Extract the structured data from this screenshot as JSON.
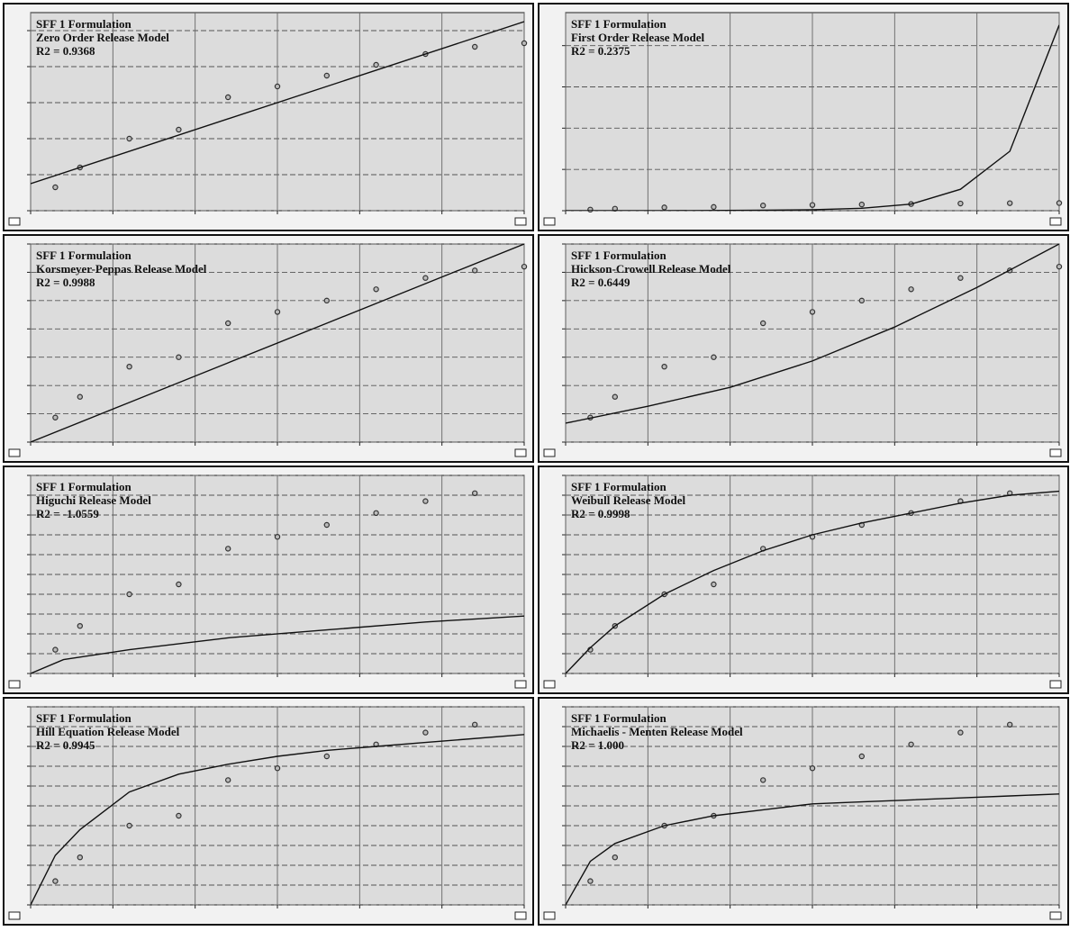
{
  "chart_data": [
    {
      "type": "scatter",
      "title": "SFF 1 Formulation",
      "subtitle": "Zero Order Release Model",
      "annotation": "R2 = 0.9368",
      "xlim": [
        0,
        60
      ],
      "xticks": [
        0,
        10,
        20,
        30,
        40,
        50,
        60
      ],
      "ylim": [
        0,
        110
      ],
      "yticks": [
        0,
        20,
        40,
        60,
        80,
        100
      ],
      "grid": true,
      "series": [
        {
          "mode": "markers",
          "color": "#333333",
          "x": [
            3,
            6,
            12,
            18,
            24,
            30,
            36,
            42,
            48,
            54,
            60
          ],
          "values": [
            13,
            24,
            40,
            45,
            63,
            69,
            75,
            81,
            87,
            91,
            93
          ]
        },
        {
          "mode": "line",
          "color": "#111111",
          "x": [
            0,
            60
          ],
          "values": [
            15,
            105
          ]
        }
      ]
    },
    {
      "type": "scatter",
      "title": "SFF 1 Formulation",
      "subtitle": "First Order Release Model",
      "annotation": "R2 = 0.2375",
      "xlim": [
        0,
        60
      ],
      "xticks": [
        0,
        10,
        20,
        30,
        40,
        50,
        60
      ],
      "ylim": [
        0,
        2400
      ],
      "yticks": [
        0,
        500,
        1000,
        1500,
        2000
      ],
      "grid": true,
      "series": [
        {
          "mode": "markers",
          "color": "#333333",
          "x": [
            3,
            6,
            12,
            18,
            24,
            30,
            36,
            42,
            48,
            54,
            60
          ],
          "values": [
            13,
            24,
            40,
            45,
            63,
            69,
            75,
            81,
            87,
            91,
            93
          ]
        },
        {
          "mode": "line",
          "color": "#111111",
          "x": [
            0,
            12,
            24,
            30,
            36,
            42,
            48,
            54,
            60
          ],
          "values": [
            0,
            0,
            5,
            12,
            30,
            80,
            260,
            720,
            2250
          ]
        }
      ]
    },
    {
      "type": "scatter",
      "title": "SFF 1 Formulation",
      "subtitle": "Korsmeyer-Peppas Release Model",
      "annotation": "R2 = 0.9988",
      "xlim": [
        0,
        60
      ],
      "xticks": [
        0,
        10,
        20,
        30,
        40,
        50,
        60
      ],
      "ylim": [
        0,
        105
      ],
      "yticks": [
        0,
        15,
        30,
        45,
        60,
        75,
        90,
        105
      ],
      "grid": true,
      "series": [
        {
          "mode": "markers",
          "color": "#333333",
          "x": [
            3,
            6,
            12,
            18,
            24,
            30,
            36,
            42,
            48,
            54,
            60
          ],
          "values": [
            13,
            24,
            40,
            45,
            63,
            69,
            75,
            81,
            87,
            91,
            93
          ]
        },
        {
          "mode": "line",
          "color": "#111111",
          "x": [
            0,
            12,
            24,
            36,
            48,
            60
          ],
          "values": [
            0,
            21,
            42,
            63,
            84,
            105
          ]
        }
      ]
    },
    {
      "type": "scatter",
      "title": "SFF 1 Formulation",
      "subtitle": "Hickson-Crowell Release Model",
      "annotation": "R2 = 0.6449",
      "xlim": [
        0,
        60
      ],
      "xticks": [
        0,
        10,
        20,
        30,
        40,
        50,
        60
      ],
      "ylim": [
        0,
        105
      ],
      "yticks": [
        0,
        15,
        30,
        45,
        60,
        75,
        90,
        105
      ],
      "grid": true,
      "series": [
        {
          "mode": "markers",
          "color": "#333333",
          "x": [
            3,
            6,
            12,
            18,
            24,
            30,
            36,
            42,
            48,
            54,
            60
          ],
          "values": [
            13,
            24,
            40,
            45,
            63,
            69,
            75,
            81,
            87,
            91,
            93
          ]
        },
        {
          "mode": "line",
          "color": "#111111",
          "x": [
            0,
            10,
            20,
            30,
            40,
            50,
            60
          ],
          "values": [
            10,
            19,
            29,
            43,
            61,
            82,
            105
          ]
        }
      ]
    },
    {
      "type": "scatter",
      "title": "SFF 1 Formulation",
      "subtitle": "Higuchi Release Model",
      "annotation": "R2 = -1.0559",
      "xlim": [
        0,
        60
      ],
      "xticks": [
        0,
        10,
        20,
        30,
        40,
        50,
        60
      ],
      "ylim": [
        0,
        100
      ],
      "yticks": [
        0,
        10,
        20,
        30,
        40,
        50,
        60,
        70,
        80,
        90,
        100
      ],
      "grid": true,
      "series": [
        {
          "mode": "markers",
          "color": "#333333",
          "x": [
            3,
            6,
            12,
            18,
            24,
            30,
            36,
            42,
            48,
            54
          ],
          "values": [
            12,
            24,
            40,
            45,
            63,
            69,
            75,
            81,
            87,
            91
          ]
        },
        {
          "mode": "line",
          "color": "#111111",
          "x": [
            0,
            4,
            12,
            24,
            36,
            48,
            60
          ],
          "values": [
            0,
            7,
            12,
            18,
            22,
            26,
            29
          ]
        }
      ]
    },
    {
      "type": "scatter",
      "title": "SFF 1 Formulation",
      "subtitle": "Weibull Release Model",
      "annotation": "R2 = 0.9998",
      "xlim": [
        0,
        60
      ],
      "xticks": [
        0,
        10,
        20,
        30,
        40,
        50,
        60
      ],
      "ylim": [
        0,
        100
      ],
      "yticks": [
        0,
        10,
        20,
        30,
        40,
        50,
        60,
        70,
        80,
        90,
        100
      ],
      "grid": true,
      "series": [
        {
          "mode": "markers",
          "color": "#333333",
          "x": [
            3,
            6,
            12,
            18,
            24,
            30,
            36,
            42,
            48,
            54
          ],
          "values": [
            12,
            24,
            40,
            45,
            63,
            69,
            75,
            81,
            87,
            91
          ]
        },
        {
          "mode": "line",
          "color": "#111111",
          "x": [
            0,
            3,
            6,
            12,
            18,
            24,
            30,
            36,
            42,
            48,
            54,
            60
          ],
          "values": [
            0,
            13,
            24,
            40,
            52,
            62,
            70,
            76,
            81,
            86,
            90,
            92
          ]
        }
      ]
    },
    {
      "type": "scatter",
      "title": "SFF 1 Formulation",
      "subtitle": "Hill Equation Release Model",
      "annotation": "R2 = 0.9945",
      "xlim": [
        0,
        60
      ],
      "xticks": [
        0,
        10,
        20,
        30,
        40,
        50,
        60
      ],
      "ylim": [
        0,
        100
      ],
      "yticks": [
        0,
        10,
        20,
        30,
        40,
        50,
        60,
        70,
        80,
        90,
        100
      ],
      "grid": true,
      "series": [
        {
          "mode": "markers",
          "color": "#333333",
          "x": [
            3,
            6,
            12,
            18,
            24,
            30,
            36,
            42,
            48,
            54
          ],
          "values": [
            12,
            24,
            40,
            45,
            63,
            69,
            75,
            81,
            87,
            91
          ]
        },
        {
          "mode": "line",
          "color": "#111111",
          "x": [
            0,
            3,
            6,
            12,
            18,
            24,
            30,
            36,
            42,
            48,
            60
          ],
          "values": [
            0,
            25,
            38,
            57,
            66,
            71,
            75,
            78,
            80,
            82,
            86
          ]
        }
      ]
    },
    {
      "type": "scatter",
      "title": "SFF 1 Formulation",
      "subtitle": "Michaelis - Menten Release Model",
      "annotation": "R2 = 1.000",
      "xlim": [
        0,
        60
      ],
      "xticks": [
        0,
        10,
        20,
        30,
        40,
        50,
        60
      ],
      "ylim": [
        0,
        100
      ],
      "yticks": [
        0,
        10,
        20,
        30,
        40,
        50,
        60,
        70,
        80,
        90,
        100
      ],
      "grid": true,
      "series": [
        {
          "mode": "markers",
          "color": "#333333",
          "x": [
            3,
            6,
            12,
            18,
            24,
            30,
            36,
            42,
            48,
            54
          ],
          "values": [
            12,
            24,
            40,
            45,
            63,
            69,
            75,
            81,
            87,
            91
          ]
        },
        {
          "mode": "line",
          "color": "#111111",
          "x": [
            0,
            3,
            6,
            12,
            18,
            24,
            30,
            36,
            42,
            48,
            54,
            60
          ],
          "values": [
            0,
            22,
            31,
            40,
            45,
            48,
            51,
            52,
            53,
            54,
            55,
            56
          ]
        }
      ]
    }
  ]
}
